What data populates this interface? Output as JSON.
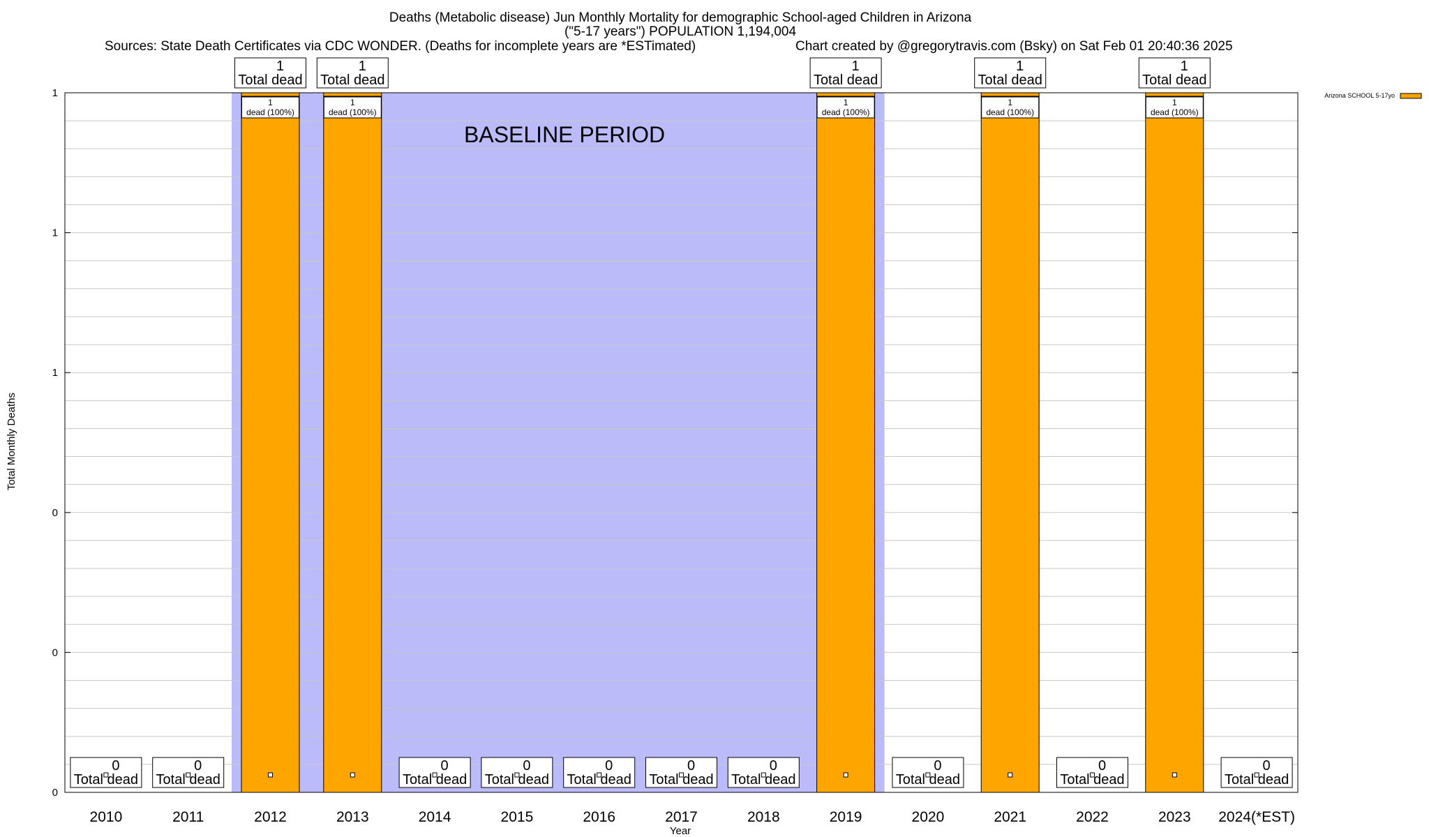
{
  "chart_data": {
    "type": "bar",
    "title_lines": [
      "Deaths (Metabolic disease) Jun Monthly Mortality for demographic School-aged Children in Arizona",
      "(\"5-17 years\") POPULATION 1,194,004"
    ],
    "sources": "Sources: State Death Certificates via CDC WONDER. (Deaths for incomplete years are *ESTimated)",
    "credit": "Chart created by @gregorytravis.com (Bsky) on Sat Feb 01 20:40:36 2025",
    "xlabel": "Year",
    "ylabel": "Total Monthly Deaths",
    "ylim": [
      0,
      1
    ],
    "y_tick_labels": [
      "0",
      "0",
      "0",
      "1",
      "1",
      "1"
    ],
    "categories": [
      "2010",
      "2011",
      "2012",
      "2013",
      "2014",
      "2015",
      "2016",
      "2017",
      "2018",
      "2019",
      "2020",
      "2021",
      "2022",
      "2023",
      "2024(*EST)"
    ],
    "series": [
      {
        "name": "Arizona SCHOOL 5-17yo",
        "color": "#ffa500",
        "values": [
          0,
          0,
          1,
          1,
          0,
          0,
          0,
          0,
          0,
          1,
          0,
          1,
          0,
          1,
          0
        ]
      }
    ],
    "total_label_text": "Total dead",
    "inner_labels": [
      "1\ndead (100%)"
    ],
    "inner_label_count": "1",
    "inner_label_text": "dead (100%)",
    "baseline": {
      "label": "BASELINE PERIOD",
      "from_category": "2012",
      "to_category": "2019",
      "color": "#bbbbfa"
    },
    "grid": true,
    "legend_position": "top-right"
  }
}
